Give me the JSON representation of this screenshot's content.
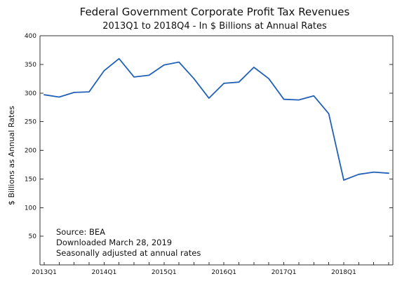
{
  "chart_data": {
    "type": "line",
    "title": "Federal Government Corporate Profit Tax Revenues",
    "subtitle": "2013Q1 to 2018Q4 - In $ Billions at Annual Rates",
    "ylabel": "$ Billions as Annual Rates",
    "xlabel": "",
    "ylim": [
      0,
      400
    ],
    "yticks": [
      50,
      100,
      150,
      200,
      250,
      300,
      350,
      400
    ],
    "x": [
      "2013Q1",
      "2013Q2",
      "2013Q3",
      "2013Q4",
      "2014Q1",
      "2014Q2",
      "2014Q3",
      "2014Q4",
      "2015Q1",
      "2015Q2",
      "2015Q3",
      "2015Q4",
      "2016Q1",
      "2016Q2",
      "2016Q3",
      "2016Q4",
      "2017Q1",
      "2017Q2",
      "2017Q3",
      "2017Q4",
      "2018Q1",
      "2018Q2",
      "2018Q3",
      "2018Q4"
    ],
    "xtick_labels": [
      "2013Q1",
      "2014Q1",
      "2015Q1",
      "2016Q1",
      "2017Q1",
      "2018Q1"
    ],
    "series": [
      {
        "color": "#2160b8",
        "values": [
          297,
          293,
          301,
          302,
          339,
          360,
          328,
          331,
          349,
          354,
          325,
          291,
          317,
          319,
          345,
          325,
          289,
          288,
          295,
          264,
          148,
          158,
          162,
          160
        ]
      }
    ],
    "annotations": [
      "Source:  BEA",
      "Downloaded March 28, 2019",
      "Seasonally adjusted at annual rates"
    ],
    "grid": false,
    "legend": "none"
  }
}
